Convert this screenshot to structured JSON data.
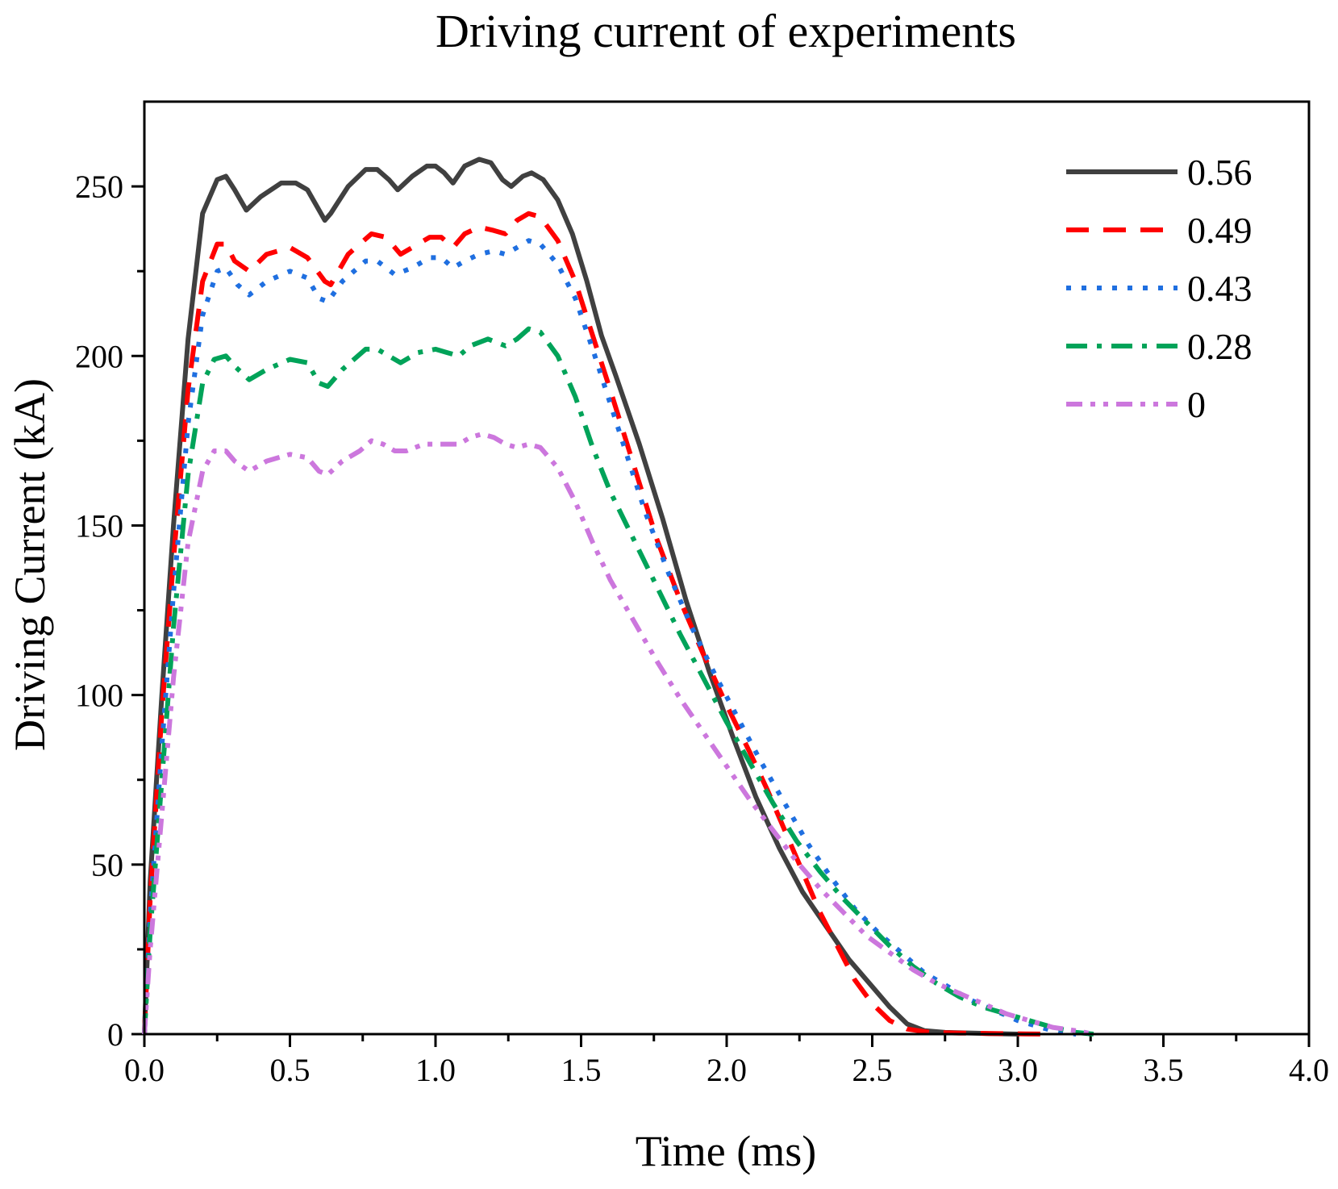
{
  "chart_data": {
    "type": "line",
    "title": "Driving current of experiments",
    "xlabel": "Time (ms)",
    "ylabel": "Driving Current (kA)",
    "xlim": [
      0,
      4
    ],
    "ylim": [
      0,
      275
    ],
    "xticks": [
      0,
      0.5,
      1,
      1.5,
      2,
      2.5,
      3,
      3.5,
      4
    ],
    "xtick_labels": [
      "0.0",
      "0.5",
      "1.0",
      "1.5",
      "2.0",
      "2.5",
      "3.0",
      "3.5",
      "4.0"
    ],
    "yticks": [
      0,
      50,
      100,
      150,
      200,
      250
    ],
    "ytick_labels": [
      "0",
      "50",
      "100",
      "150",
      "200",
      "250"
    ],
    "grid": false,
    "legend_position": "top-right",
    "series": [
      {
        "name": "0.56",
        "color": "#404040",
        "dash": "solid",
        "points": [
          [
            0,
            0
          ],
          [
            0.02,
            45
          ],
          [
            0.06,
            100
          ],
          [
            0.1,
            150
          ],
          [
            0.15,
            205
          ],
          [
            0.2,
            242
          ],
          [
            0.25,
            252
          ],
          [
            0.28,
            253
          ],
          [
            0.31,
            249
          ],
          [
            0.35,
            243
          ],
          [
            0.4,
            247
          ],
          [
            0.47,
            251
          ],
          [
            0.52,
            251
          ],
          [
            0.56,
            249
          ],
          [
            0.6,
            243
          ],
          [
            0.62,
            240
          ],
          [
            0.64,
            242
          ],
          [
            0.7,
            250
          ],
          [
            0.76,
            255
          ],
          [
            0.8,
            255
          ],
          [
            0.84,
            252
          ],
          [
            0.87,
            249
          ],
          [
            0.92,
            253
          ],
          [
            0.97,
            256
          ],
          [
            1.0,
            256
          ],
          [
            1.03,
            254
          ],
          [
            1.06,
            251
          ],
          [
            1.1,
            256
          ],
          [
            1.15,
            258
          ],
          [
            1.19,
            257
          ],
          [
            1.23,
            252
          ],
          [
            1.26,
            250
          ],
          [
            1.3,
            253
          ],
          [
            1.33,
            254
          ],
          [
            1.37,
            252
          ],
          [
            1.42,
            246
          ],
          [
            1.47,
            236
          ],
          [
            1.52,
            222
          ],
          [
            1.57,
            206
          ],
          [
            1.62,
            194
          ],
          [
            1.7,
            174
          ],
          [
            1.78,
            152
          ],
          [
            1.86,
            128
          ],
          [
            1.94,
            107
          ],
          [
            2.02,
            88
          ],
          [
            2.1,
            70
          ],
          [
            2.18,
            55
          ],
          [
            2.26,
            42
          ],
          [
            2.34,
            32
          ],
          [
            2.42,
            22
          ],
          [
            2.5,
            14
          ],
          [
            2.56,
            8
          ],
          [
            2.62,
            3
          ],
          [
            2.68,
            1
          ],
          [
            2.75,
            0.5
          ],
          [
            2.9,
            0.2
          ],
          [
            3.0,
            0
          ]
        ]
      },
      {
        "name": "0.49",
        "color": "#ff0000",
        "dash": "long-dash",
        "points": [
          [
            0,
            0
          ],
          [
            0.02,
            40
          ],
          [
            0.06,
            95
          ],
          [
            0.1,
            140
          ],
          [
            0.15,
            190
          ],
          [
            0.2,
            222
          ],
          [
            0.25,
            233
          ],
          [
            0.28,
            233
          ],
          [
            0.31,
            228
          ],
          [
            0.36,
            225
          ],
          [
            0.42,
            230
          ],
          [
            0.5,
            232
          ],
          [
            0.56,
            229
          ],
          [
            0.62,
            222
          ],
          [
            0.64,
            221
          ],
          [
            0.7,
            230
          ],
          [
            0.78,
            236
          ],
          [
            0.83,
            235
          ],
          [
            0.88,
            230
          ],
          [
            0.92,
            232
          ],
          [
            0.98,
            235
          ],
          [
            1.02,
            235
          ],
          [
            1.06,
            232
          ],
          [
            1.1,
            236
          ],
          [
            1.15,
            238
          ],
          [
            1.2,
            237
          ],
          [
            1.24,
            236
          ],
          [
            1.28,
            240
          ],
          [
            1.32,
            242
          ],
          [
            1.36,
            241
          ],
          [
            1.42,
            234
          ],
          [
            1.48,
            222
          ],
          [
            1.54,
            206
          ],
          [
            1.6,
            190
          ],
          [
            1.68,
            168
          ],
          [
            1.76,
            146
          ],
          [
            1.84,
            128
          ],
          [
            1.92,
            112
          ],
          [
            2.0,
            97
          ],
          [
            2.08,
            83
          ],
          [
            2.14,
            72
          ],
          [
            2.2,
            60
          ],
          [
            2.26,
            48
          ],
          [
            2.32,
            36
          ],
          [
            2.38,
            26
          ],
          [
            2.44,
            16
          ],
          [
            2.5,
            9
          ],
          [
            2.56,
            4
          ],
          [
            2.62,
            1.5
          ],
          [
            2.7,
            0.5
          ],
          [
            2.8,
            0.3
          ],
          [
            2.9,
            0.2
          ],
          [
            3.0,
            0.1
          ],
          [
            3.1,
            0
          ]
        ]
      },
      {
        "name": "0.43",
        "color": "#1f6fe0",
        "dash": "dot",
        "points": [
          [
            0,
            0
          ],
          [
            0.02,
            35
          ],
          [
            0.06,
            85
          ],
          [
            0.1,
            130
          ],
          [
            0.15,
            180
          ],
          [
            0.2,
            212
          ],
          [
            0.25,
            225
          ],
          [
            0.28,
            226
          ],
          [
            0.32,
            221
          ],
          [
            0.36,
            218
          ],
          [
            0.42,
            222
          ],
          [
            0.5,
            225
          ],
          [
            0.56,
            223
          ],
          [
            0.6,
            217
          ],
          [
            0.63,
            216
          ],
          [
            0.68,
            222
          ],
          [
            0.76,
            228
          ],
          [
            0.8,
            228
          ],
          [
            0.86,
            224
          ],
          [
            0.92,
            226
          ],
          [
            0.98,
            229
          ],
          [
            1.02,
            229
          ],
          [
            1.06,
            226
          ],
          [
            1.1,
            228
          ],
          [
            1.15,
            230
          ],
          [
            1.2,
            231
          ],
          [
            1.24,
            230
          ],
          [
            1.28,
            232
          ],
          [
            1.32,
            234
          ],
          [
            1.36,
            233
          ],
          [
            1.42,
            227
          ],
          [
            1.48,
            217
          ],
          [
            1.54,
            202
          ],
          [
            1.6,
            186
          ],
          [
            1.66,
            170
          ],
          [
            1.72,
            154
          ],
          [
            1.8,
            136
          ],
          [
            1.88,
            120
          ],
          [
            1.96,
            106
          ],
          [
            2.04,
            93
          ],
          [
            2.12,
            80
          ],
          [
            2.2,
            68
          ],
          [
            2.28,
            56
          ],
          [
            2.36,
            46
          ],
          [
            2.44,
            37
          ],
          [
            2.52,
            30
          ],
          [
            2.6,
            24
          ],
          [
            2.68,
            18
          ],
          [
            2.76,
            14
          ],
          [
            2.84,
            10
          ],
          [
            2.92,
            7
          ],
          [
            3.0,
            4
          ],
          [
            3.08,
            2
          ],
          [
            3.14,
            0.5
          ],
          [
            3.2,
            0
          ]
        ]
      },
      {
        "name": "0.28",
        "color": "#00a359",
        "dash": "dash-dot",
        "points": [
          [
            0,
            0
          ],
          [
            0.02,
            30
          ],
          [
            0.06,
            75
          ],
          [
            0.1,
            120
          ],
          [
            0.15,
            165
          ],
          [
            0.2,
            192
          ],
          [
            0.24,
            199
          ],
          [
            0.28,
            200
          ],
          [
            0.31,
            197
          ],
          [
            0.36,
            193
          ],
          [
            0.42,
            196
          ],
          [
            0.5,
            199
          ],
          [
            0.56,
            198
          ],
          [
            0.6,
            192
          ],
          [
            0.63,
            191
          ],
          [
            0.68,
            196
          ],
          [
            0.76,
            202
          ],
          [
            0.8,
            202
          ],
          [
            0.84,
            200
          ],
          [
            0.88,
            198
          ],
          [
            0.94,
            201
          ],
          [
            1.0,
            202
          ],
          [
            1.04,
            201
          ],
          [
            1.08,
            200
          ],
          [
            1.12,
            203
          ],
          [
            1.18,
            205
          ],
          [
            1.24,
            203
          ],
          [
            1.28,
            205
          ],
          [
            1.32,
            208
          ],
          [
            1.36,
            207
          ],
          [
            1.42,
            200
          ],
          [
            1.48,
            188
          ],
          [
            1.54,
            173
          ],
          [
            1.6,
            160
          ],
          [
            1.68,
            146
          ],
          [
            1.76,
            132
          ],
          [
            1.84,
            118
          ],
          [
            1.92,
            105
          ],
          [
            2.0,
            92
          ],
          [
            2.08,
            80
          ],
          [
            2.16,
            68
          ],
          [
            2.24,
            57
          ],
          [
            2.32,
            48
          ],
          [
            2.4,
            40
          ],
          [
            2.48,
            33
          ],
          [
            2.56,
            26
          ],
          [
            2.64,
            20
          ],
          [
            2.72,
            15
          ],
          [
            2.8,
            11
          ],
          [
            2.88,
            8
          ],
          [
            2.96,
            6
          ],
          [
            3.04,
            4
          ],
          [
            3.12,
            2
          ],
          [
            3.2,
            0.5
          ],
          [
            3.26,
            0
          ]
        ]
      },
      {
        "name": "0",
        "color": "#cc77dd",
        "dash": "dash-dot-dot",
        "points": [
          [
            0,
            0
          ],
          [
            0.02,
            25
          ],
          [
            0.06,
            65
          ],
          [
            0.1,
            105
          ],
          [
            0.15,
            145
          ],
          [
            0.2,
            166
          ],
          [
            0.24,
            172
          ],
          [
            0.28,
            172
          ],
          [
            0.31,
            169
          ],
          [
            0.36,
            166
          ],
          [
            0.42,
            169
          ],
          [
            0.5,
            171
          ],
          [
            0.56,
            170
          ],
          [
            0.6,
            166
          ],
          [
            0.63,
            165
          ],
          [
            0.68,
            169
          ],
          [
            0.74,
            172
          ],
          [
            0.78,
            175
          ],
          [
            0.82,
            174
          ],
          [
            0.86,
            172
          ],
          [
            0.9,
            172
          ],
          [
            0.96,
            174
          ],
          [
            1.02,
            174
          ],
          [
            1.08,
            174
          ],
          [
            1.12,
            176
          ],
          [
            1.16,
            177
          ],
          [
            1.2,
            176
          ],
          [
            1.24,
            174
          ],
          [
            1.28,
            173
          ],
          [
            1.32,
            174
          ],
          [
            1.36,
            173
          ],
          [
            1.42,
            167
          ],
          [
            1.48,
            157
          ],
          [
            1.54,
            145
          ],
          [
            1.6,
            134
          ],
          [
            1.68,
            122
          ],
          [
            1.76,
            110
          ],
          [
            1.84,
            99
          ],
          [
            1.92,
            89
          ],
          [
            2.0,
            79
          ],
          [
            2.08,
            69
          ],
          [
            2.16,
            60
          ],
          [
            2.24,
            51
          ],
          [
            2.32,
            43
          ],
          [
            2.4,
            36
          ],
          [
            2.48,
            29
          ],
          [
            2.56,
            24
          ],
          [
            2.64,
            19
          ],
          [
            2.72,
            15
          ],
          [
            2.8,
            12
          ],
          [
            2.88,
            9
          ],
          [
            2.96,
            6
          ],
          [
            3.04,
            4
          ],
          [
            3.12,
            2
          ],
          [
            3.2,
            1
          ],
          [
            3.26,
            0
          ]
        ]
      }
    ]
  }
}
